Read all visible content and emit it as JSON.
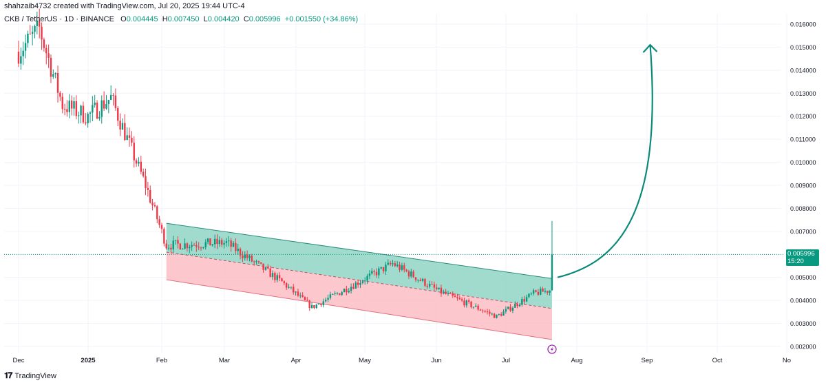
{
  "header": {
    "credit": "shahzaib4732 created with TradingView.com, Jul 20, 2025 19:44 UTC-4",
    "symbol": "CKB / TetherUS · 1D · BINANCE",
    "o_label": "O",
    "o_value": "0.004445",
    "h_label": "H",
    "h_value": "0.007450",
    "l_label": "L",
    "l_value": "0.004420",
    "c_label": "C",
    "c_value": "0.005996",
    "change": "+0.001550 (+34.86%)"
  },
  "price_tag": {
    "price": "0.005996",
    "countdown": "15:20"
  },
  "footer": {
    "brand": "TradingView",
    "logo": "tv-logo-icon"
  },
  "colors": {
    "up": "#089981",
    "down": "#f23645",
    "channel_upper_fill": "#8fd5c4",
    "channel_lower_fill": "#fbbdc4",
    "arrow": "#0b8a79",
    "grid": "#f0f3fa"
  },
  "chart_data": {
    "type": "candlestick",
    "x_ticks": [
      "Dec",
      "2025",
      "Feb",
      "Mar",
      "Apr",
      "May",
      "Jun",
      "Jul",
      "Aug",
      "Sep",
      "Oct",
      "No"
    ],
    "y_ticks": [
      "0.016000",
      "0.015000",
      "0.014000",
      "0.013000",
      "0.012000",
      "0.011000",
      "0.010000",
      "0.009000",
      "0.008000",
      "0.007000",
      "0.006000",
      "0.005000",
      "0.004000",
      "0.003000",
      "0.002000"
    ],
    "ylim": [
      0.0015,
      0.0165
    ],
    "last_close": 0.005996,
    "key_points": [
      {
        "date": "2024-12-01",
        "close": 0.0148
      },
      {
        "date": "2024-12-10",
        "close": 0.0158
      },
      {
        "date": "2024-12-20",
        "close": 0.0125
      },
      {
        "date": "2024-12-31",
        "close": 0.012
      },
      {
        "date": "2025-01-10",
        "close": 0.0128
      },
      {
        "date": "2025-01-25",
        "close": 0.009
      },
      {
        "date": "2025-02-03",
        "close": 0.0064
      },
      {
        "date": "2025-03-01",
        "close": 0.0065
      },
      {
        "date": "2025-03-25",
        "close": 0.0048
      },
      {
        "date": "2025-04-07",
        "close": 0.0037
      },
      {
        "date": "2025-05-01",
        "close": 0.005
      },
      {
        "date": "2025-05-12",
        "close": 0.0056
      },
      {
        "date": "2025-06-01",
        "close": 0.0044
      },
      {
        "date": "2025-06-26",
        "close": 0.0033
      },
      {
        "date": "2025-07-12",
        "close": 0.0043
      },
      {
        "date": "2025-07-19",
        "close": 0.004445
      },
      {
        "date": "2025-07-20",
        "close": 0.005996
      }
    ],
    "channel": {
      "upper": [
        {
          "date": "2025-02-03",
          "price": 0.00735
        },
        {
          "date": "2025-07-20",
          "price": 0.00495
        }
      ],
      "middle": [
        {
          "date": "2025-02-03",
          "price": 0.0061
        },
        {
          "date": "2025-07-20",
          "price": 0.00365
        }
      ],
      "lower": [
        {
          "date": "2025-02-03",
          "price": 0.0049
        },
        {
          "date": "2025-07-20",
          "price": 0.0023
        }
      ]
    },
    "projection_arrow": {
      "from": {
        "date": "2025-07-20",
        "price": 0.005
      },
      "to": {
        "date": "2025-08-30",
        "price": 0.0151
      }
    }
  }
}
